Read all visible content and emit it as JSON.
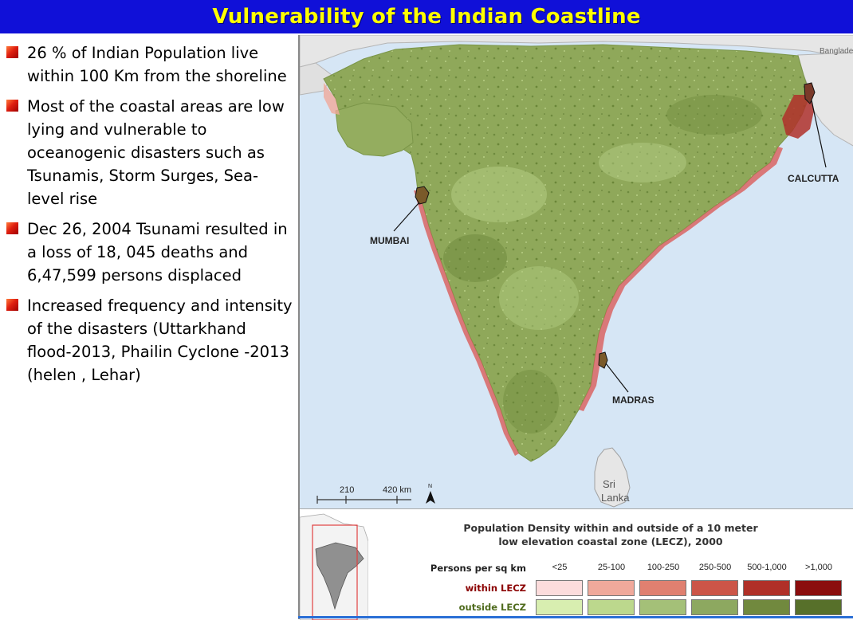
{
  "title": "Vulnerability of the Indian Coastline",
  "bullets": [
    "26 % of Indian Population live within 100 Km from the shoreline",
    "Most of the coastal areas are low lying and vulnerable to oceanogenic disasters such as Tsunamis, Storm Surges, Sea-level rise",
    "Dec 26, 2004 Tsunami resulted in a loss of 18, 045 deaths and 6,47,599 persons displaced",
    "Increased frequency and intensity of the disasters (Uttarkhand flood-2013, Phailin Cyclone -2013 (helen , Lehar)"
  ],
  "map": {
    "labels": {
      "bangladesh": "Bangladesh",
      "calcutta": "CALCUTTA",
      "mumbai": "MUMBAI",
      "madras": "MADRAS",
      "sri_lanka_1": "Sri",
      "sri_lanka_2": "Lanka"
    },
    "scale": {
      "tick1": "210",
      "tick2": "420 km",
      "north": "N"
    },
    "colors": {
      "sea": "#d6e6f5",
      "land": "#8fa85a",
      "neighbor": "#e8e8e8",
      "coastal": "#d9534f"
    }
  },
  "legend": {
    "title_line1": "Population Density within and outside of a 10 meter",
    "title_line2": "low elevation coastal zone (LECZ), 2000",
    "persons_label": "Persons per sq km",
    "within_label": "within LECZ",
    "outside_label": "outside LECZ",
    "classes": [
      "<25",
      "25-100",
      "100-250",
      "250-500",
      "500-1,000",
      ">1,000"
    ],
    "within_colors": [
      "#fcdcdc",
      "#f0a99b",
      "#e08070",
      "#cc5548",
      "#b03028",
      "#8b0d0d"
    ],
    "outside_colors": [
      "#d8eeb0",
      "#bcd88d",
      "#a4c078",
      "#8da860",
      "#71893e",
      "#57702a"
    ]
  }
}
